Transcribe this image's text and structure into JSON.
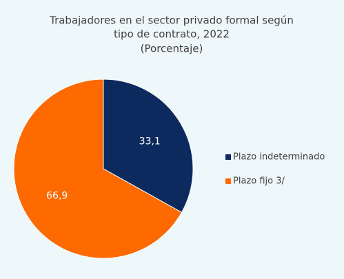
{
  "chart_data": {
    "type": "pie",
    "title": [
      "Trabajadores en el sector privado formal según",
      "tipo de contrato, 2022"
    ],
    "subtitle": "(Porcentaje)",
    "categories": [
      "Plazo indeterminado",
      "Plazo fijo 3/"
    ],
    "values": [
      33.1,
      66.9
    ],
    "value_labels": [
      "33,1",
      "66,9"
    ],
    "colors": [
      "#0d2a5e",
      "#ff6a00"
    ],
    "legend": "right"
  }
}
